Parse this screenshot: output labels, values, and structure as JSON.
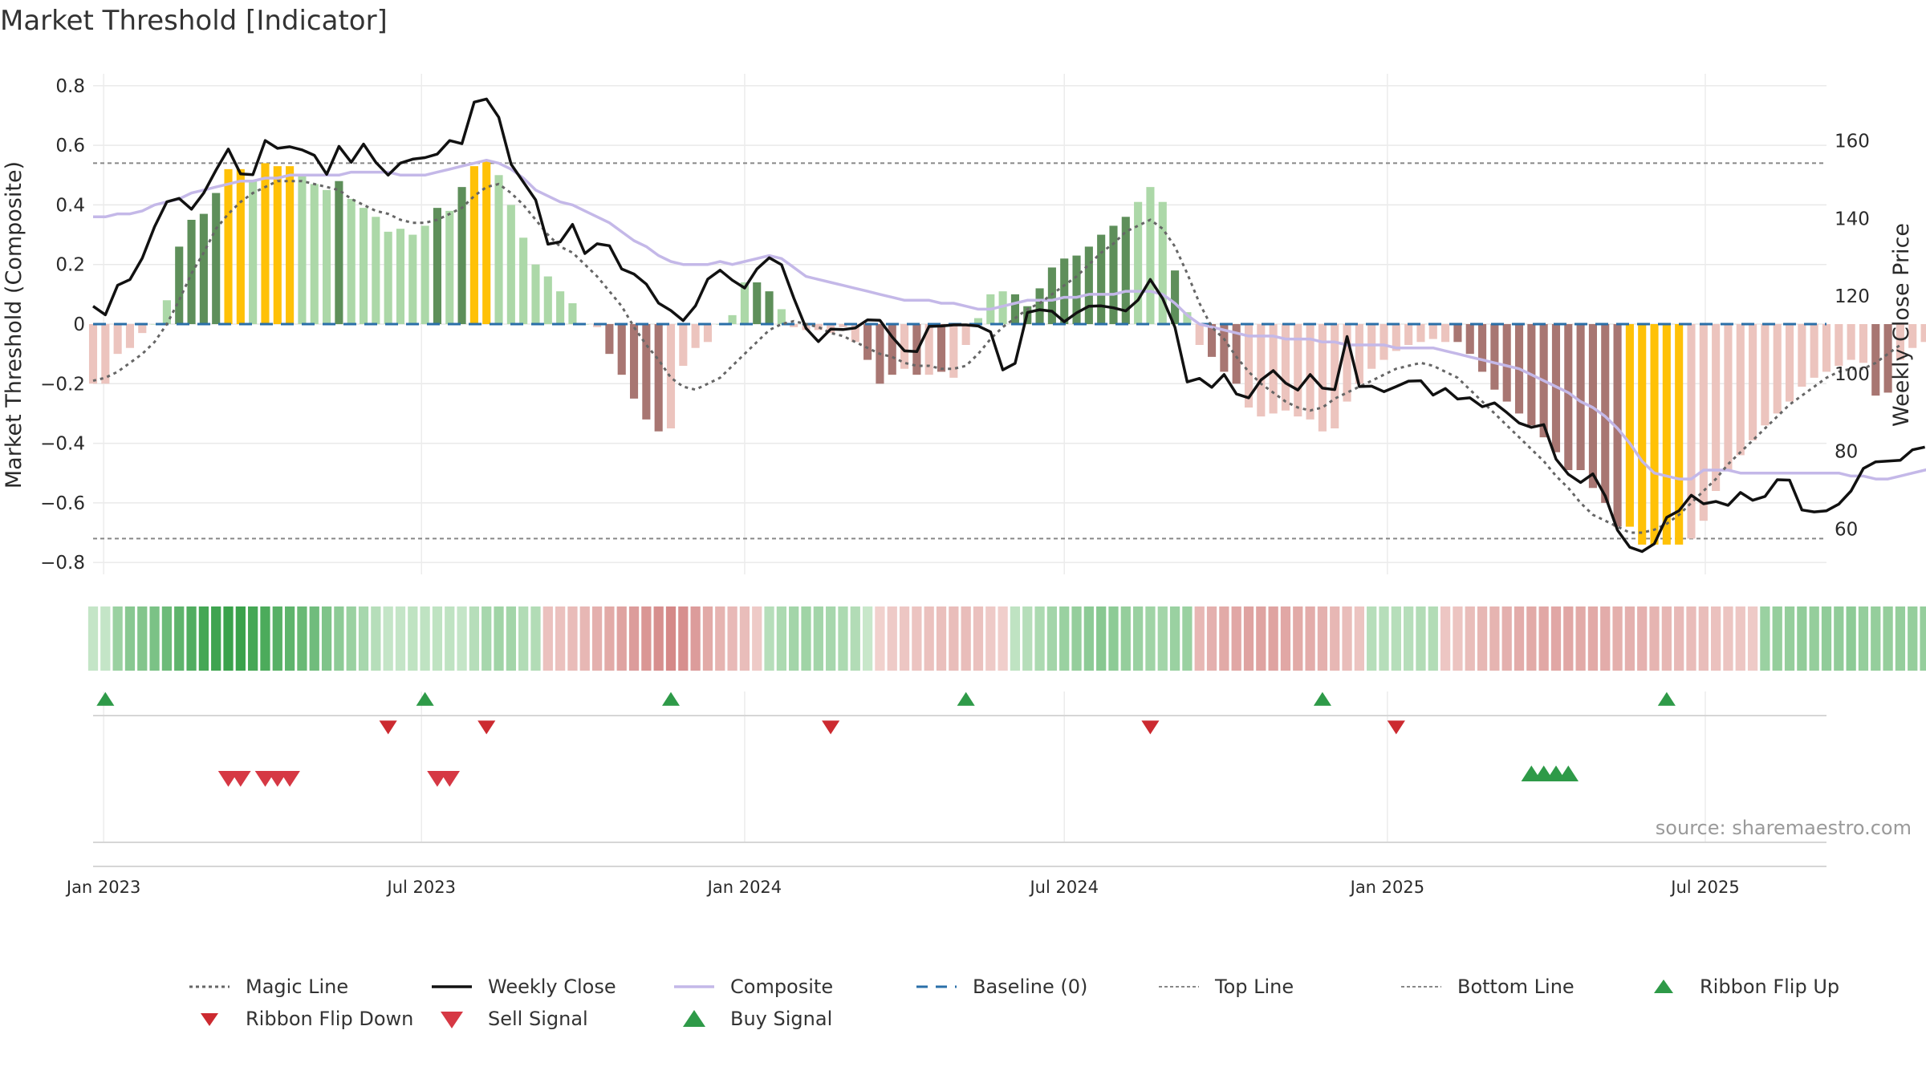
{
  "title": "Market Threshold [Indicator]",
  "source": "source: sharemaestro.com",
  "colors": {
    "bull_dark": "#5e8f5a",
    "bull_light": "#acd8a8",
    "bear_dark": "#a87672",
    "bear_light": "#ecc4be",
    "extreme": "#ffc107",
    "weekly_close": "#111111",
    "composite": "#c4b8e8",
    "magic_line": "#666666",
    "baseline": "#2a6fa8",
    "threshold_lines": "#888888",
    "flip_up": "#2e9a48",
    "flip_down": "#cc2a30",
    "sell": "#d63844",
    "buy": "#2e9a48"
  },
  "chart_data": {
    "type": "bar",
    "title": "Market Threshold [Indicator]",
    "xlabel": "",
    "ylabel": "Market Threshold (Composite)",
    "y2label": "Weekly Close Price",
    "ylim": [
      -0.84,
      0.84
    ],
    "y2lim": [
      48.3,
      177.3
    ],
    "yticks": [
      0.8,
      0.6,
      0.4,
      0.2,
      0,
      -0.2,
      -0.4,
      -0.6,
      -0.8
    ],
    "ytick_labels": [
      "0.8",
      "0.6",
      "0.4",
      "0.2",
      "0",
      "−0.2",
      "−0.4",
      "−0.6",
      "−0.8"
    ],
    "y2ticks": [
      60,
      80,
      100,
      120,
      140,
      160
    ],
    "y2tick_labels": [
      "60",
      "80",
      "100",
      "120",
      "140",
      "160"
    ],
    "x_start": "2022-12-26",
    "x_end": "2025-09-08",
    "week_dates_first": "2022-12-26",
    "week_interval_days": 7,
    "xticks": [
      "2023-01-01",
      "2023-07-01",
      "2024-01-01",
      "2024-07-01",
      "2025-01-01",
      "2025-07-01"
    ],
    "xtick_labels": [
      "Jan 2023",
      "Jul 2023",
      "Jan 2024",
      "Jul 2024",
      "Jan 2025",
      "Jul 2025"
    ],
    "top_line": 0.54,
    "bottom_line": -0.72,
    "baseline": 0,
    "grid": true,
    "legend_position": "bottom",
    "bars": [
      -0.2,
      -0.2,
      -0.1,
      -0.08,
      -0.03,
      0,
      0.08,
      0.26,
      0.35,
      0.37,
      0.44,
      0.52,
      0.52,
      0.48,
      0.54,
      0.53,
      0.53,
      0.5,
      0.47,
      0.45,
      0.48,
      0.42,
      0.39,
      0.36,
      0.31,
      0.32,
      0.3,
      0.33,
      0.39,
      0.38,
      0.46,
      0.53,
      0.55,
      0.5,
      0.4,
      0.29,
      0.2,
      0.16,
      0.11,
      0.07,
      0,
      -0.01,
      -0.1,
      -0.17,
      -0.25,
      -0.32,
      -0.36,
      -0.35,
      -0.14,
      -0.08,
      -0.06,
      0,
      0.03,
      0.14,
      0.14,
      0.11,
      0.05,
      -0.01,
      -0.02,
      -0.02,
      -0.03,
      -0.01,
      -0.06,
      -0.12,
      -0.2,
      -0.17,
      -0.15,
      -0.17,
      -0.17,
      -0.16,
      -0.18,
      -0.07,
      0.02,
      0.1,
      0.11,
      0.1,
      0.06,
      0.12,
      0.19,
      0.22,
      0.23,
      0.26,
      0.3,
      0.33,
      0.36,
      0.41,
      0.46,
      0.41,
      0.18,
      0.04,
      -0.07,
      -0.11,
      -0.16,
      -0.2,
      -0.28,
      -0.31,
      -0.3,
      -0.29,
      -0.31,
      -0.32,
      -0.36,
      -0.35,
      -0.26,
      -0.2,
      -0.15,
      -0.12,
      -0.09,
      -0.07,
      -0.06,
      -0.05,
      -0.06,
      -0.06,
      -0.1,
      -0.16,
      -0.22,
      -0.26,
      -0.3,
      -0.34,
      -0.38,
      -0.43,
      -0.49,
      -0.49,
      -0.55,
      -0.6,
      -0.68,
      -0.68,
      -0.74,
      -0.74,
      -0.74,
      -0.74,
      -0.72,
      -0.66,
      -0.56,
      -0.49,
      -0.44,
      -0.39,
      -0.34,
      -0.3,
      -0.26,
      -0.21,
      -0.18,
      -0.16,
      -0.14,
      -0.12,
      -0.13,
      -0.24,
      -0.23,
      -0.12,
      -0.08,
      -0.06,
      -0.04
    ],
    "bar_classes": "LLLLLLPDDDDXXPXXXPPPDPPPPPPPDPDXXPPPPPPPLLDDDDDLLLLLLPDDPPLLLLLDDDLDLDLLLPPDDDDDDDDDDPPPDLLDDDLLLLLLLLLLLLLLLLLDDDDDDDDDDDDDDXXXXXLLLLLLLLLLLLLLLDDLLLL",
    "weekly_close": [
      117.4,
      115.2,
      122.8,
      124.3,
      129.8,
      137.9,
      144.3,
      145.2,
      142.4,
      146.6,
      152.5,
      157.9,
      151.5,
      151.3,
      160.1,
      158.1,
      158.5,
      157.7,
      156.3,
      151.4,
      158.6,
      154.5,
      159.2,
      154.5,
      151.2,
      154.3,
      155.3,
      155.7,
      156.6,
      160.1,
      159.3,
      170.0,
      170.8,
      166.1,
      154.0,
      149.4,
      144.8,
      133.4,
      134.0,
      138.5,
      131.0,
      133.5,
      133.0,
      127.0,
      125.7,
      123.1,
      118.2,
      116.3,
      113.7,
      117.5,
      124.4,
      126.7,
      124.1,
      122.1,
      127.0,
      129.9,
      128.1,
      119.5,
      111.7,
      108.3,
      111.5,
      111.4,
      111.8,
      113.9,
      113.8,
      109.5,
      105.9,
      105.7,
      112.2,
      112.3,
      112.6,
      112.6,
      112.3,
      110.8,
      101.0,
      102.7,
      115.8,
      116.5,
      116.1,
      113.4,
      115.7,
      117.4,
      117.5,
      117.0,
      116.2,
      119.0,
      124.3,
      119.4,
      112.0,
      97.9,
      98.8,
      96.5,
      99.8,
      94.8,
      93.8,
      98.4,
      100.8,
      97.6,
      95.8,
      99.8,
      96.3,
      95.9,
      109.6,
      96.7,
      96.8,
      95.4,
      96.7,
      98.1,
      98.2,
      94.5,
      96.2,
      93.5,
      93.8,
      91.5,
      92.5,
      90.0,
      87.3,
      86.2,
      86.9,
      78.0,
      74.1,
      72.0,
      74.2,
      68.5,
      59.7,
      55.3,
      54.2,
      56.2,
      63.0,
      64.7,
      68.7,
      66.5,
      67.1,
      66.1,
      69.4,
      67.4,
      68.4,
      72.7,
      72.6,
      64.9,
      64.4,
      64.7,
      66.4,
      69.8,
      75.6,
      77.3,
      77.5,
      77.7,
      80.4,
      81.1
    ],
    "composite": [
      0.36,
      0.36,
      0.37,
      0.37,
      0.38,
      0.4,
      0.41,
      0.42,
      0.44,
      0.45,
      0.46,
      0.47,
      0.48,
      0.48,
      0.49,
      0.49,
      0.5,
      0.5,
      0.5,
      0.5,
      0.5,
      0.51,
      0.51,
      0.51,
      0.51,
      0.5,
      0.5,
      0.5,
      0.51,
      0.52,
      0.53,
      0.54,
      0.55,
      0.54,
      0.52,
      0.49,
      0.45,
      0.43,
      0.41,
      0.4,
      0.38,
      0.36,
      0.34,
      0.31,
      0.28,
      0.26,
      0.23,
      0.21,
      0.2,
      0.2,
      0.2,
      0.21,
      0.2,
      0.21,
      0.22,
      0.23,
      0.22,
      0.19,
      0.16,
      0.15,
      0.14,
      0.13,
      0.12,
      0.11,
      0.1,
      0.09,
      0.08,
      0.08,
      0.08,
      0.07,
      0.07,
      0.06,
      0.05,
      0.05,
      0.06,
      0.07,
      0.08,
      0.08,
      0.08,
      0.09,
      0.09,
      0.1,
      0.1,
      0.1,
      0.11,
      0.11,
      0.11,
      0.1,
      0.07,
      0.03,
      0,
      -0.01,
      -0.02,
      -0.03,
      -0.04,
      -0.04,
      -0.04,
      -0.05,
      -0.05,
      -0.05,
      -0.06,
      -0.06,
      -0.07,
      -0.07,
      -0.07,
      -0.07,
      -0.08,
      -0.08,
      -0.08,
      -0.08,
      -0.09,
      -0.1,
      -0.11,
      -0.12,
      -0.13,
      -0.14,
      -0.15,
      -0.17,
      -0.19,
      -0.21,
      -0.23,
      -0.26,
      -0.28,
      -0.31,
      -0.35,
      -0.4,
      -0.46,
      -0.5,
      -0.51,
      -0.52,
      -0.52,
      -0.49,
      -0.49,
      -0.49,
      -0.5,
      -0.5,
      -0.5,
      -0.5,
      -0.5,
      -0.5,
      -0.5,
      -0.5,
      -0.5,
      -0.51,
      -0.51,
      -0.52,
      -0.52,
      -0.51,
      -0.5,
      -0.49,
      -0.48,
      -0.47,
      -0.46
    ],
    "magic_line": [
      -0.19,
      -0.18,
      -0.16,
      -0.13,
      -0.1,
      -0.06,
      0,
      0.08,
      0.17,
      0.24,
      0.32,
      0.37,
      0.41,
      0.44,
      0.46,
      0.48,
      0.48,
      0.48,
      0.47,
      0.46,
      0.45,
      0.42,
      0.4,
      0.38,
      0.37,
      0.35,
      0.34,
      0.34,
      0.35,
      0.37,
      0.39,
      0.43,
      0.46,
      0.47,
      0.44,
      0.4,
      0.35,
      0.3,
      0.26,
      0.24,
      0.2,
      0.16,
      0.11,
      0.06,
      -0.01,
      -0.07,
      -0.12,
      -0.18,
      -0.21,
      -0.22,
      -0.2,
      -0.18,
      -0.14,
      -0.1,
      -0.06,
      -0.02,
      0,
      0.01,
      0,
      -0.01,
      -0.03,
      -0.04,
      -0.06,
      -0.08,
      -0.1,
      -0.11,
      -0.13,
      -0.14,
      -0.14,
      -0.15,
      -0.15,
      -0.14,
      -0.1,
      -0.05,
      -0.01,
      0.02,
      0.05,
      0.07,
      0.1,
      0.13,
      0.16,
      0.2,
      0.24,
      0.27,
      0.31,
      0.33,
      0.35,
      0.32,
      0.26,
      0.17,
      0.07,
      -0.01,
      -0.05,
      -0.11,
      -0.16,
      -0.2,
      -0.23,
      -0.26,
      -0.28,
      -0.29,
      -0.28,
      -0.25,
      -0.23,
      -0.21,
      -0.19,
      -0.17,
      -0.15,
      -0.14,
      -0.13,
      -0.14,
      -0.16,
      -0.18,
      -0.22,
      -0.26,
      -0.3,
      -0.34,
      -0.38,
      -0.42,
      -0.46,
      -0.51,
      -0.55,
      -0.6,
      -0.64,
      -0.66,
      -0.68,
      -0.7,
      -0.7,
      -0.69,
      -0.67,
      -0.64,
      -0.6,
      -0.56,
      -0.52,
      -0.47,
      -0.43,
      -0.39,
      -0.35,
      -0.31,
      -0.27,
      -0.24,
      -0.21,
      -0.18,
      -0.16,
      -0.15,
      -0.15,
      -0.13,
      -0.1,
      -0.07
    ],
    "ribbon_values": [
      0.12,
      0.12,
      0.35,
      0.45,
      0.48,
      0.52,
      0.6,
      0.68,
      0.75,
      0.82,
      0.85,
      0.88,
      0.88,
      0.82,
      0.78,
      0.72,
      0.68,
      0.62,
      0.58,
      0.5,
      0.42,
      0.35,
      0.28,
      0.2,
      0.12,
      0.12,
      0.15,
      0.15,
      0.15,
      0.15,
      0.12,
      0.2,
      0.28,
      0.32,
      0.3,
      0.22,
      0.22,
      -0.22,
      -0.22,
      -0.26,
      -0.3,
      -0.35,
      -0.4,
      -0.45,
      -0.5,
      -0.55,
      -0.6,
      -0.65,
      -0.6,
      -0.5,
      -0.4,
      -0.32,
      -0.28,
      -0.25,
      -0.15,
      0.2,
      0.25,
      0.3,
      0.32,
      0.3,
      0.28,
      0.25,
      0.22,
      0.1,
      -0.1,
      -0.15,
      -0.18,
      -0.2,
      -0.22,
      -0.24,
      -0.25,
      -0.25,
      -0.22,
      -0.15,
      -0.12,
      0.15,
      0.2,
      0.25,
      0.3,
      0.35,
      0.38,
      0.42,
      0.45,
      0.42,
      0.38,
      0.35,
      0.32,
      0.3,
      0.35,
      0.35,
      -0.3,
      -0.35,
      -0.4,
      -0.42,
      -0.45,
      -0.45,
      -0.45,
      -0.42,
      -0.4,
      -0.38,
      -0.35,
      -0.3,
      -0.25,
      -0.2,
      0.2,
      0.2,
      0.2,
      0.2,
      0.22,
      0.22,
      -0.18,
      -0.2,
      -0.25,
      -0.3,
      -0.32,
      -0.35,
      -0.38,
      -0.4,
      -0.42,
      -0.42,
      -0.42,
      -0.4,
      -0.4,
      -0.38,
      -0.36,
      -0.35,
      -0.34,
      -0.32,
      -0.3,
      -0.28,
      -0.26,
      -0.25,
      -0.22,
      -0.2,
      -0.18,
      -0.15,
      0.35,
      0.38,
      0.38,
      0.4,
      0.38,
      0.4,
      0.4,
      0.42,
      0.38,
      0.38,
      0.38,
      0.38,
      0.38,
      0.38,
      0.38,
      0.38,
      0.38
    ],
    "ribbon_flip_up": [
      "2023-01-02",
      "2023-07-03",
      "2023-11-20",
      "2024-05-06",
      "2024-11-25",
      "2025-06-09"
    ],
    "ribbon_flip_down": [
      "2023-06-12",
      "2023-08-07",
      "2024-02-19",
      "2024-08-19",
      "2025-01-06"
    ],
    "sell_signals": [
      "2023-03-13",
      "2023-03-20",
      "2023-04-03",
      "2023-04-10",
      "2023-04-17",
      "2023-07-10",
      "2023-07-17"
    ],
    "buy_signals": [
      "2025-03-24",
      "2025-03-31",
      "2025-04-07",
      "2025-04-14"
    ],
    "legend": [
      "Magic Line",
      "Weekly Close",
      "Composite",
      "Baseline (0)",
      "Top Line",
      "Bottom Line",
      "Ribbon Flip Up",
      "Ribbon Flip Down",
      "Sell Signal",
      "Buy Signal"
    ]
  }
}
